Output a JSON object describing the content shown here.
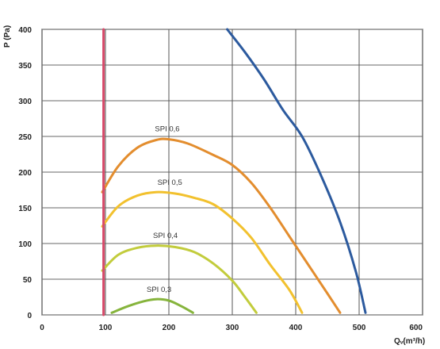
{
  "chart_data": {
    "type": "line",
    "title": "",
    "xlabel": "Qᵥ(m³/h)",
    "ylabel": "P (Pa)",
    "xlim": [
      0,
      600
    ],
    "ylim": [
      0,
      400
    ],
    "x_ticks": [
      0,
      100,
      200,
      300,
      400,
      500,
      600
    ],
    "y_ticks": [
      0,
      50,
      100,
      150,
      200,
      250,
      300,
      350,
      400
    ],
    "grid": true,
    "series": [
      {
        "name": "SPI 0,6",
        "color": "#e38d2e",
        "points": [
          [
            95,
            172
          ],
          [
            120,
            208
          ],
          [
            150,
            234
          ],
          [
            180,
            245
          ],
          [
            200,
            246
          ],
          [
            230,
            240
          ],
          [
            270,
            224
          ],
          [
            300,
            210
          ],
          [
            330,
            185
          ],
          [
            360,
            150
          ],
          [
            390,
            110
          ],
          [
            420,
            70
          ],
          [
            450,
            30
          ],
          [
            470,
            3
          ]
        ]
      },
      {
        "name": "SPI 0,5",
        "color": "#f2c12e",
        "points": [
          [
            95,
            124
          ],
          [
            120,
            152
          ],
          [
            150,
            167
          ],
          [
            180,
            172
          ],
          [
            210,
            170
          ],
          [
            240,
            164
          ],
          [
            270,
            155
          ],
          [
            300,
            135
          ],
          [
            330,
            108
          ],
          [
            360,
            70
          ],
          [
            390,
            35
          ],
          [
            410,
            3
          ]
        ]
      },
      {
        "name": "SPI 0,4",
        "color": "#c2cc3c",
        "points": [
          [
            95,
            62
          ],
          [
            120,
            84
          ],
          [
            150,
            94
          ],
          [
            180,
            97
          ],
          [
            210,
            95
          ],
          [
            240,
            88
          ],
          [
            270,
            72
          ],
          [
            300,
            48
          ],
          [
            320,
            25
          ],
          [
            338,
            3
          ]
        ]
      },
      {
        "name": "SPI 0,3",
        "color": "#86b43c",
        "points": [
          [
            110,
            3
          ],
          [
            135,
            12
          ],
          [
            160,
            19
          ],
          [
            180,
            22
          ],
          [
            200,
            20
          ],
          [
            220,
            12
          ],
          [
            238,
            3
          ]
        ]
      },
      {
        "name": "",
        "color": "#2c5a9e",
        "points": [
          [
            292,
            400
          ],
          [
            320,
            368
          ],
          [
            350,
            330
          ],
          [
            380,
            287
          ],
          [
            410,
            250
          ],
          [
            440,
            195
          ],
          [
            470,
            130
          ],
          [
            495,
            60
          ],
          [
            510,
            3
          ]
        ]
      },
      {
        "name": "",
        "color": "#d84a6a",
        "points": [
          [
            97,
            0
          ],
          [
            97,
            400
          ]
        ]
      }
    ],
    "annotations": [
      {
        "text": "SPI 0,6",
        "x": 178,
        "y": 257
      },
      {
        "text": "SPI 0,5",
        "x": 182,
        "y": 182
      },
      {
        "text": "SPI 0,4",
        "x": 175,
        "y": 108
      },
      {
        "text": "SPI 0,3",
        "x": 165,
        "y": 32
      }
    ]
  }
}
